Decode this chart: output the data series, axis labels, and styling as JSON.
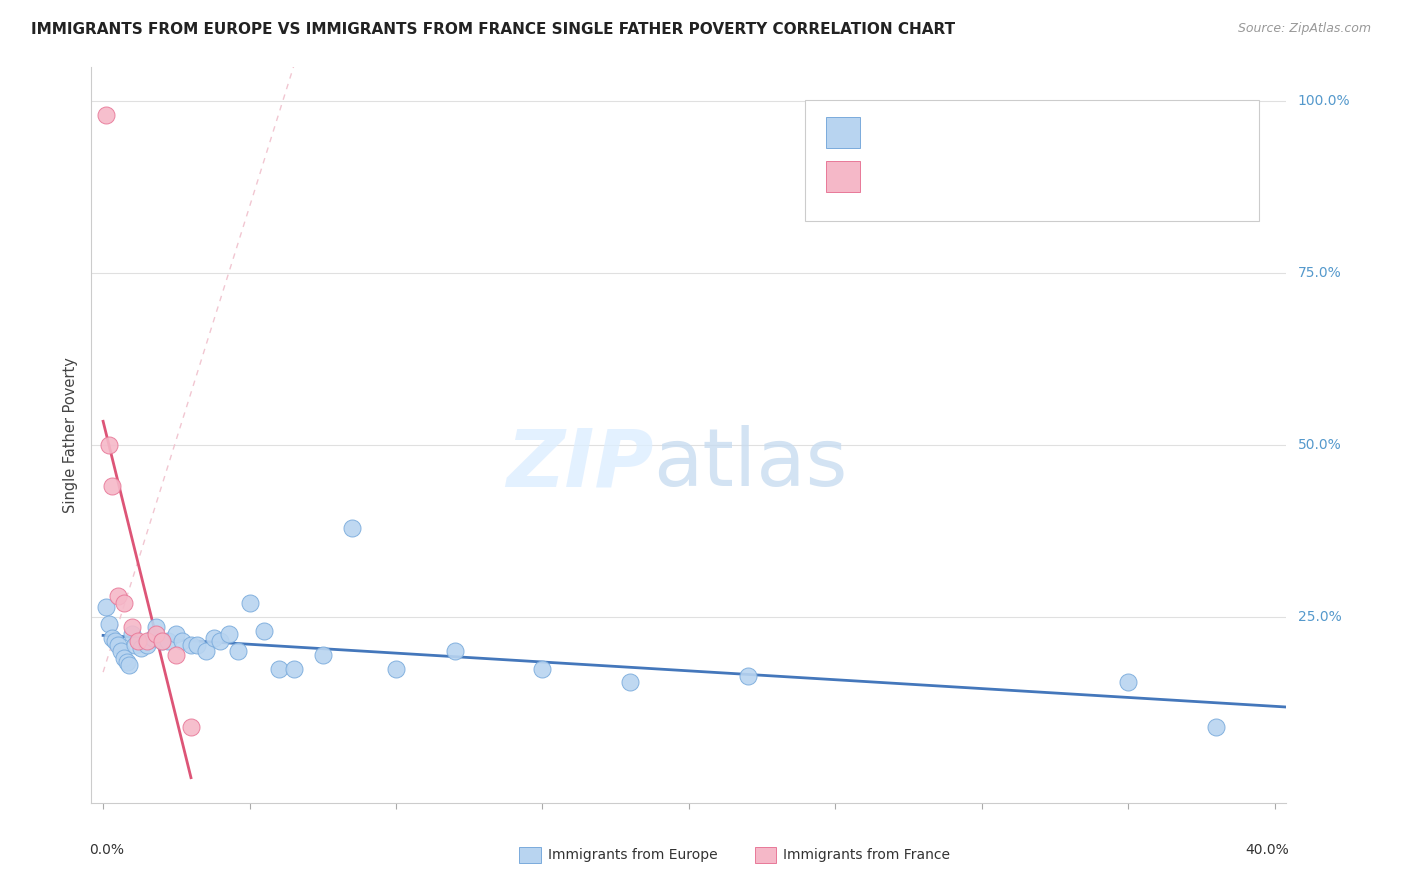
{
  "title": "IMMIGRANTS FROM EUROPE VS IMMIGRANTS FROM FRANCE SINGLE FATHER POVERTY CORRELATION CHART",
  "source": "Source: ZipAtlas.com",
  "ylabel": "Single Father Poverty",
  "blue_color": "#b8d4f0",
  "pink_color": "#f5b8c8",
  "blue_edge_color": "#7aabdc",
  "pink_edge_color": "#e87898",
  "blue_line_color": "#4477bb",
  "pink_line_color": "#dd5577",
  "diag_line_color": "#f0c0cc",
  "grid_color": "#e0e0e0",
  "right_label_color": "#5599cc",
  "europe_x": [
    0.001,
    0.002,
    0.003,
    0.004,
    0.005,
    0.006,
    0.007,
    0.008,
    0.009,
    0.01,
    0.011,
    0.013,
    0.015,
    0.017,
    0.018,
    0.02,
    0.022,
    0.025,
    0.027,
    0.03,
    0.032,
    0.035,
    0.038,
    0.04,
    0.043,
    0.046,
    0.05,
    0.055,
    0.06,
    0.065,
    0.075,
    0.085,
    0.1,
    0.12,
    0.15,
    0.18,
    0.22,
    0.35,
    0.38
  ],
  "europe_y": [
    0.265,
    0.24,
    0.22,
    0.215,
    0.21,
    0.2,
    0.19,
    0.185,
    0.18,
    0.225,
    0.21,
    0.205,
    0.21,
    0.22,
    0.235,
    0.215,
    0.215,
    0.225,
    0.215,
    0.21,
    0.21,
    0.2,
    0.22,
    0.215,
    0.225,
    0.2,
    0.27,
    0.23,
    0.175,
    0.175,
    0.195,
    0.38,
    0.175,
    0.2,
    0.175,
    0.155,
    0.165,
    0.155,
    0.09
  ],
  "france_x": [
    0.001,
    0.002,
    0.003,
    0.005,
    0.007,
    0.01,
    0.012,
    0.015,
    0.018,
    0.02,
    0.025,
    0.03
  ],
  "france_y": [
    0.98,
    0.5,
    0.44,
    0.28,
    0.27,
    0.235,
    0.215,
    0.215,
    0.225,
    0.215,
    0.195,
    0.09
  ],
  "xlim": [
    -0.004,
    0.404
  ],
  "ylim": [
    -0.02,
    1.05
  ],
  "figsize": [
    14.06,
    8.92
  ],
  "dpi": 100
}
